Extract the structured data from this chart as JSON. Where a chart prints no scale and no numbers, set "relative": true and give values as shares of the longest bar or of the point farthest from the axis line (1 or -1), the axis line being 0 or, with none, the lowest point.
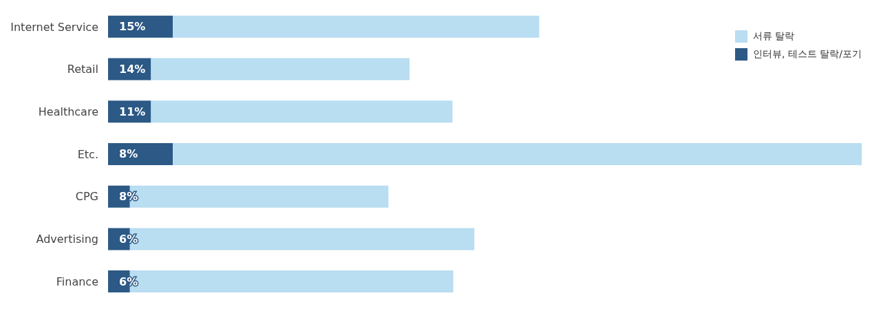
{
  "chart_data": {
    "type": "bar",
    "orientation": "horizontal",
    "stacked": true,
    "relative": true,
    "legend": "top right",
    "categories": [
      "Internet Service",
      "Retail",
      "Healthcare",
      "Etc.",
      "CPG",
      "Advertising",
      "Finance"
    ],
    "series": [
      {
        "name": "인터뷰, 테스트 탈락/포기",
        "color": "#2c5985",
        "values": [
          0.086,
          0.057,
          0.057,
          0.086,
          0.029,
          0.029,
          0.029
        ]
      },
      {
        "name": "서류 탈락",
        "color": "#b9ddf1",
        "values": [
          0.486,
          0.343,
          0.4,
          0.914,
          0.343,
          0.457,
          0.429
        ]
      }
    ],
    "annotations": [
      "15%",
      "14%",
      "11%",
      "8%",
      "8%",
      "6%",
      "6%"
    ]
  }
}
